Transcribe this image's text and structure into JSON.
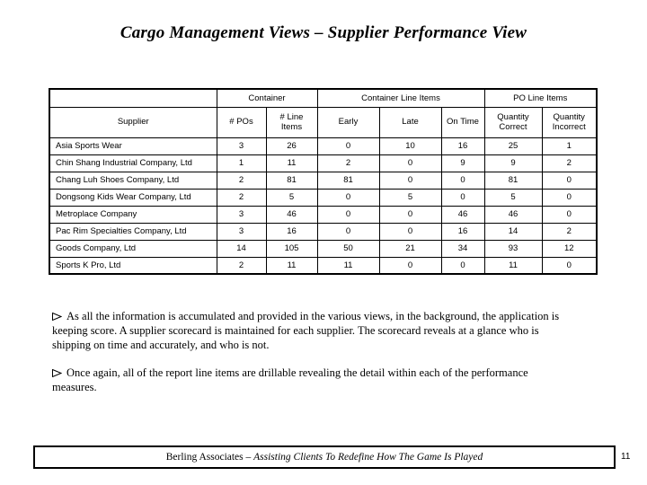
{
  "slide": {
    "title": "Cargo Management Views – Supplier Performance View",
    "page_number": "11"
  },
  "table": {
    "group_headers": [
      "",
      "Container",
      "Container Line Items",
      "PO Line Items"
    ],
    "columns": [
      "Supplier",
      "# POs",
      "# Line Items",
      "Early",
      "Late",
      "On Time",
      "Quantity Correct",
      "Quantity Incorrect"
    ],
    "rows": [
      [
        "Asia Sports Wear",
        "3",
        "26",
        "0",
        "10",
        "16",
        "25",
        "1"
      ],
      [
        "Chin Shang Industrial Company, Ltd",
        "1",
        "11",
        "2",
        "0",
        "9",
        "9",
        "2"
      ],
      [
        "Chang Luh Shoes Company, Ltd",
        "2",
        "81",
        "81",
        "0",
        "0",
        "81",
        "0"
      ],
      [
        "Dongsong Kids Wear Company, Ltd",
        "2",
        "5",
        "0",
        "5",
        "0",
        "5",
        "0"
      ],
      [
        "Metroplace Company",
        "3",
        "46",
        "0",
        "0",
        "46",
        "46",
        "0"
      ],
      [
        "Pac Rim Specialties Company, Ltd",
        "3",
        "16",
        "0",
        "0",
        "16",
        "14",
        "2"
      ],
      [
        "Goods Company, Ltd",
        "14",
        "105",
        "50",
        "21",
        "34",
        "93",
        "12"
      ],
      [
        "Sports K Pro, Ltd",
        "2",
        "11",
        "11",
        "0",
        "0",
        "11",
        "0"
      ]
    ]
  },
  "bullets": [
    {
      "glyph": "➢",
      "text": "As all the information is accumulated and provided in the various views, in the background, the application is keeping score.  A supplier scorecard is maintained for each supplier.  The scorecard reveals at a glance who is shipping on time and accurately, and who is not."
    },
    {
      "glyph": "➢",
      "text": "Once again, all of the report line items are drillable revealing the detail within each of the performance measures."
    }
  ],
  "footer": {
    "company": "Berling Associates – ",
    "tagline": "Assisting Clients To Redefine How The Game Is Played"
  },
  "colors": {
    "background": "#ffffff",
    "text": "#000000",
    "border": "#000000"
  }
}
